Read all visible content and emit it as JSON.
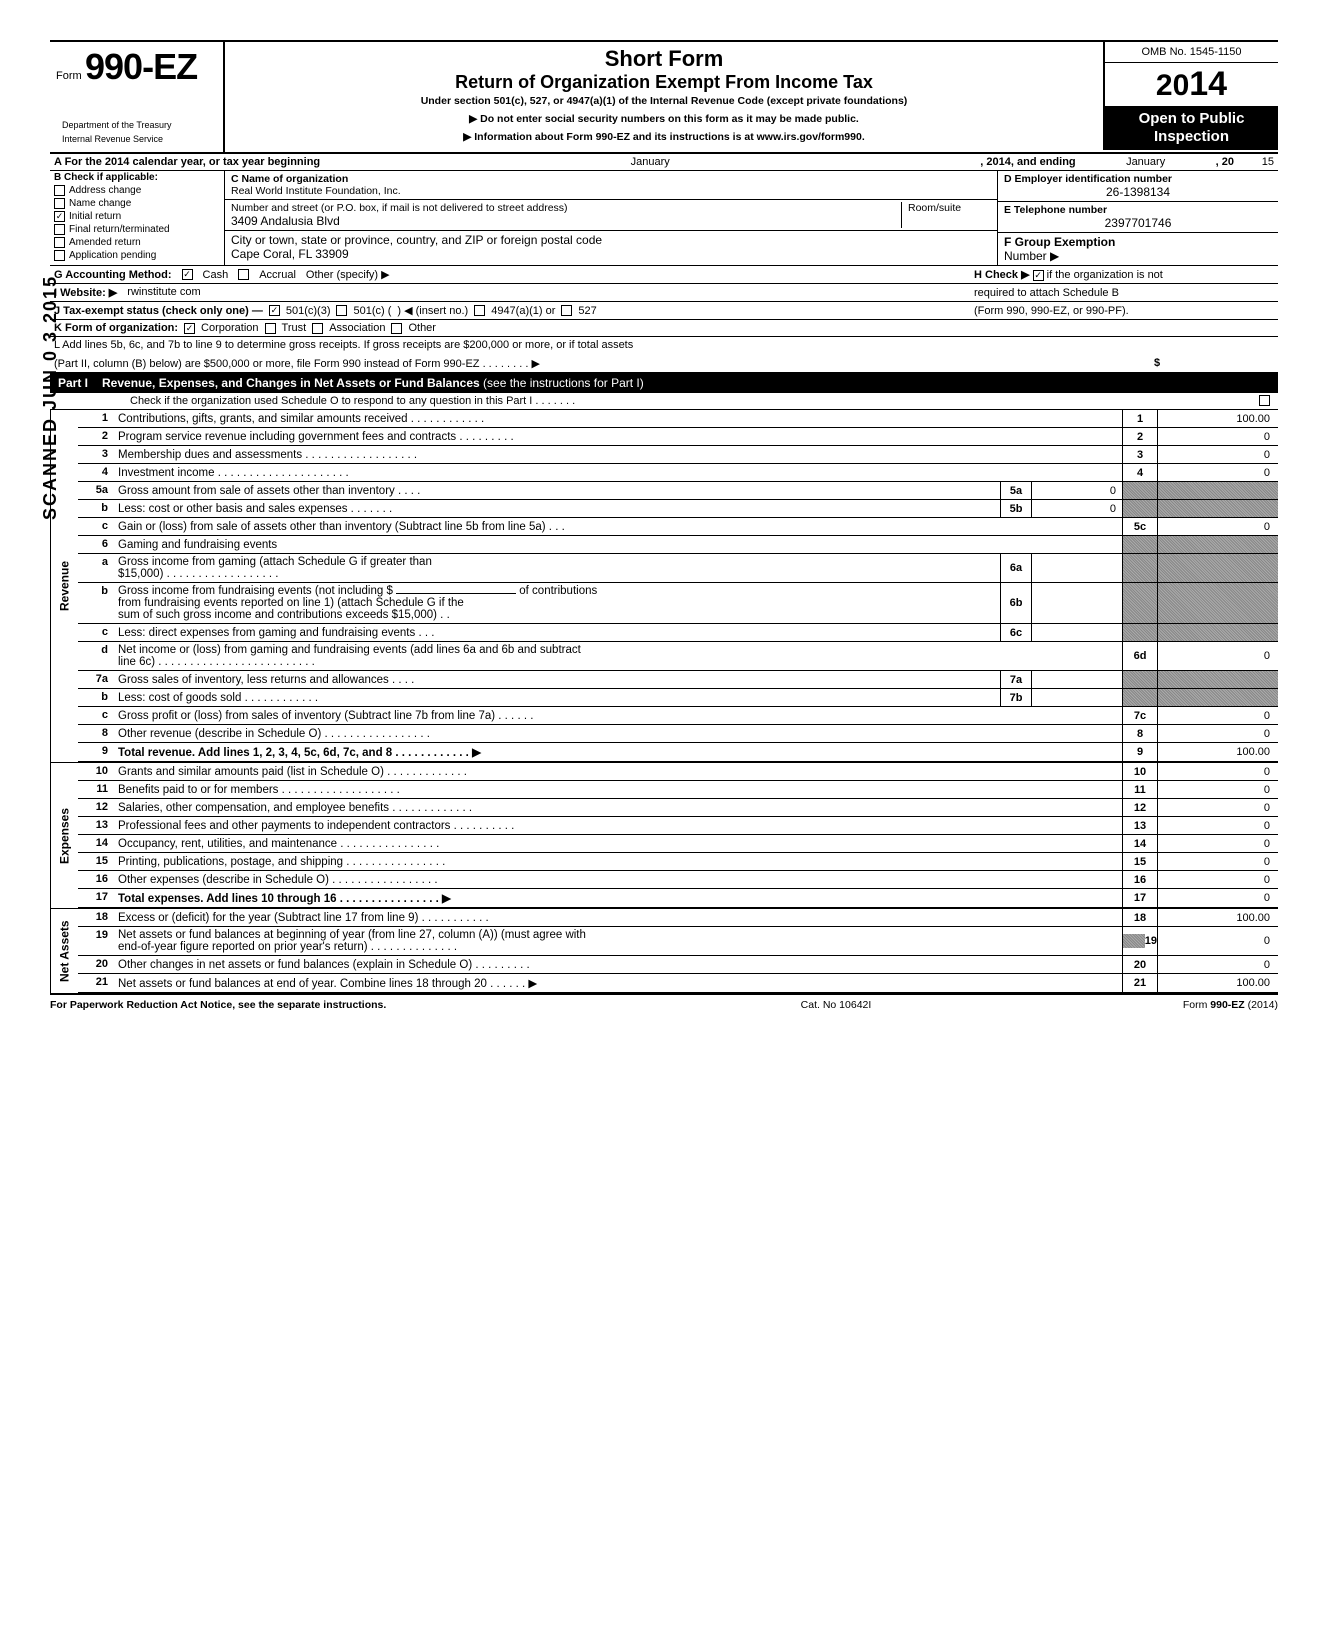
{
  "header": {
    "form_prefix": "Form",
    "form_no": "990-EZ",
    "dept1": "Department of the Treasury",
    "dept2": "Internal Revenue Service",
    "title": "Short Form",
    "subtitle": "Return of Organization Exempt From Income Tax",
    "under": "Under section 501(c), 527, or 4947(a)(1) of the Internal Revenue Code (except private foundations)",
    "ssn_note": "▶ Do not enter social security numbers on this form as it may be made public.",
    "info_note": "▶ Information about Form 990-EZ and its instructions is at www.irs.gov/form990.",
    "omb": "OMB No. 1545-1150",
    "year_prefix": "20",
    "year_bold": "14",
    "open1": "Open to Public",
    "open2": "Inspection"
  },
  "line_a": {
    "text_l": "A  For the 2014 calendar year, or tax year beginning",
    "month1": "January",
    "mid": ", 2014, and ending",
    "month2": "January",
    "end": ", 20",
    "end_yr": "15"
  },
  "col_b": {
    "header": "B  Check if applicable:",
    "items": [
      {
        "label": "Address change",
        "checked": false
      },
      {
        "label": "Name change",
        "checked": false
      },
      {
        "label": "Initial return",
        "checked": true
      },
      {
        "label": "Final return/terminated",
        "checked": false
      },
      {
        "label": "Amended return",
        "checked": false
      },
      {
        "label": "Application pending",
        "checked": false
      }
    ]
  },
  "col_c": {
    "name_label": "C  Name of organization",
    "name_value": "Real World Institute Foundation, Inc.",
    "street_label": "Number and street (or P.O. box, if mail is not delivered to street address)",
    "room_label": "Room/suite",
    "street_value": "3409 Andalusia Blvd",
    "city_label": "City or town, state or province, country, and ZIP or foreign postal code",
    "city_value": "Cape Coral, FL 33909"
  },
  "col_d": {
    "ein_label": "D Employer identification number",
    "ein_value": "26-1398134",
    "phone_label": "E  Telephone number",
    "phone_value": "2397701746",
    "group_label": "F  Group Exemption",
    "group_label2": "Number ▶"
  },
  "line_g": {
    "label": "G  Accounting Method:",
    "cash": "Cash",
    "cash_checked": true,
    "accrual": "Accrual",
    "accrual_checked": false,
    "other": "Other (specify) ▶"
  },
  "line_h": {
    "text1": "H  Check ▶",
    "checked": true,
    "text2": "if the organization is not",
    "text3": "required to attach Schedule B",
    "text4": "(Form 990, 990-EZ, or 990-PF)."
  },
  "line_i": {
    "label": "I   Website: ▶",
    "value": "rwinstitute com"
  },
  "line_j": {
    "label": "J  Tax-exempt status (check only one) —",
    "o1": "501(c)(3)",
    "o1_checked": true,
    "o2": "501(c) (",
    "o2_checked": false,
    "insert": ") ◀ (insert no.)",
    "o3": "4947(a)(1) or",
    "o3_checked": false,
    "o4": "527",
    "o4_checked": false
  },
  "line_k": {
    "label": "K  Form of organization:",
    "corp": "Corporation",
    "corp_checked": true,
    "trust": "Trust",
    "trust_checked": false,
    "assoc": "Association",
    "assoc_checked": false,
    "other": "Other",
    "other_checked": false
  },
  "line_l": {
    "text": "L  Add lines 5b, 6c, and 7b to line 9 to determine gross receipts. If gross receipts are $200,000 or more, or if total assets",
    "text2": "(Part II, column (B) below) are $500,000 or more, file Form 990 instead of Form 990-EZ .    .    .    .    .    .    .    .   ▶",
    "amount_label": "$"
  },
  "part1": {
    "no": "Part I",
    "title_b": "Revenue, Expenses, and Changes in Net Assets or Fund Balances",
    "title_r": " (see the instructions for Part I)",
    "check_o": "Check if the organization used Schedule O to respond to any question in this Part I .    .    .    .    .    .    ."
  },
  "rotated": {
    "revenue": "Revenue",
    "expenses": "Expenses",
    "netassets": "Net Assets"
  },
  "revenue_lines": [
    {
      "n": "1",
      "desc": "Contributions, gifts, grants, and similar amounts received .    .    .    .    .    .    .    .    .    .    .    .",
      "rn": "1",
      "rv": "100.00"
    },
    {
      "n": "2",
      "desc": "Program service revenue including government fees and contracts    .    .    .    .    .    .    .    .    .",
      "rn": "2",
      "rv": "0"
    },
    {
      "n": "3",
      "desc": "Membership dues and assessments .    .    .    .    .    .    .    .    .    .    .    .    .    .    .    .    .    .",
      "rn": "3",
      "rv": "0"
    },
    {
      "n": "4",
      "desc": "Investment income      .    .    .    .    .    .    .    .    .    .    .    .    .    .    .    .    .    .    .    .    .",
      "rn": "4",
      "rv": "0"
    }
  ],
  "line5a": {
    "n": "5a",
    "desc": "Gross amount from sale of assets other than inventory    .    .    .    .",
    "mn": "5a",
    "mv": "0"
  },
  "line5b": {
    "n": "b",
    "desc": "Less: cost or other basis and sales expenses .    .    .    .    .    .    .",
    "mn": "5b",
    "mv": "0"
  },
  "line5c": {
    "n": "c",
    "desc": "Gain or (loss) from sale of assets other than inventory (Subtract line 5b from line 5a) .    .    .",
    "rn": "5c",
    "rv": "0"
  },
  "line6": {
    "n": "6",
    "desc": "Gaming and fundraising events"
  },
  "line6a": {
    "n": "a",
    "desc1": "Gross income from gaming (attach Schedule G if greater than",
    "desc2": "$15,000) .    .    .    .    .    .    .    .    .    .    .    .    .    .    .    .    .    .",
    "mn": "6a",
    "mv": ""
  },
  "line6b": {
    "n": "b",
    "desc1": "Gross income from fundraising events (not including  $",
    "desc_mid": "of contributions",
    "desc2": "from fundraising events reported on line 1) (attach Schedule G if the",
    "desc3": "sum of such gross income and contributions exceeds $15,000) .    .",
    "mn": "6b",
    "mv": ""
  },
  "line6c": {
    "n": "c",
    "desc": "Less: direct expenses from gaming and fundraising events    .    .    .",
    "mn": "6c",
    "mv": ""
  },
  "line6d": {
    "n": "d",
    "desc1": "Net income or (loss) from gaming and fundraising events (add lines 6a and 6b and subtract",
    "desc2": "line 6c)     .    .    .    .    .    .    .    .    .    .    .    .    .    .    .    .    .    .    .    .    .    .    .    .    .",
    "rn": "6d",
    "rv": "0"
  },
  "line7a": {
    "n": "7a",
    "desc": "Gross sales of inventory, less returns and allowances    .    .    .    .",
    "mn": "7a",
    "mv": ""
  },
  "line7b": {
    "n": "b",
    "desc": "Less: cost of goods sold       .    .    .    .    .    .    .    .    .    .    .    .",
    "mn": "7b",
    "mv": ""
  },
  "line7c": {
    "n": "c",
    "desc": "Gross profit or (loss) from sales of inventory (Subtract line 7b from line 7a)    .    .    .    .    .    .",
    "rn": "7c",
    "rv": "0"
  },
  "line8": {
    "n": "8",
    "desc": "Other revenue (describe in Schedule O) .    .    .    .    .    .    .    .    .    .    .    .    .    .    .    .    .",
    "rn": "8",
    "rv": "0"
  },
  "line9": {
    "n": "9",
    "desc": "Total revenue. Add lines 1, 2, 3, 4, 5c, 6d, 7c, and 8    .    .    .    .    .    .    .    .    .    .    .    .   ▶",
    "rn": "9",
    "rv": "100.00",
    "bold": true
  },
  "expense_lines": [
    {
      "n": "10",
      "desc": "Grants and similar amounts paid (list in Schedule O)    .    .    .    .    .    .    .    .    .    .    .    .    .",
      "rn": "10",
      "rv": "0"
    },
    {
      "n": "11",
      "desc": "Benefits paid to or for members    .    .    .    .    .    .    .    .    .    .    .    .    .    .    .    .    .    .    .",
      "rn": "11",
      "rv": "0"
    },
    {
      "n": "12",
      "desc": "Salaries, other compensation, and employee benefits    .    .    .    .    .    .    .    .    .    .    .    .    .",
      "rn": "12",
      "rv": "0"
    },
    {
      "n": "13",
      "desc": "Professional fees and other payments to independent contractors .    .    .    .    .    .    .    .    .    .",
      "rn": "13",
      "rv": "0"
    },
    {
      "n": "14",
      "desc": "Occupancy, rent, utilities, and maintenance    .    .    .    .    .    .    .    .    .    .    .    .    .    .    .    .",
      "rn": "14",
      "rv": "0"
    },
    {
      "n": "15",
      "desc": "Printing, publications, postage, and shipping .    .    .    .    .    .    .    .    .    .    .    .    .    .    .    .",
      "rn": "15",
      "rv": "0"
    },
    {
      "n": "16",
      "desc": "Other expenses (describe in Schedule O)  .    .    .    .    .    .    .    .    .    .    .    .    .    .    .    .    .",
      "rn": "16",
      "rv": "0"
    },
    {
      "n": "17",
      "desc": "Total expenses. Add lines 10 through 16   .    .    .    .    .    .    .    .    .    .    .    .    .    .    .    .   ▶",
      "rn": "17",
      "rv": "0",
      "bold": true
    }
  ],
  "netasset_lines": [
    {
      "n": "18",
      "desc": "Excess or (deficit) for the year (Subtract line 17 from line 9)    .    .    .    .    .    .    .    .    .    .    .",
      "rn": "18",
      "rv": "100.00"
    },
    {
      "n": "19",
      "desc1": "Net assets or fund balances at beginning of year (from line 27, column (A)) (must agree with",
      "desc2": "end-of-year figure reported on prior year's return)    .    .    .    .    .    .    .    .    .    .    .    .    .    .",
      "rn": "19",
      "rv": "0",
      "shade_first": true
    },
    {
      "n": "20",
      "desc": "Other changes in net assets or fund balances (explain in Schedule O) .    .    .    .    .    .    .    .    .",
      "rn": "20",
      "rv": "0"
    },
    {
      "n": "21",
      "desc": "Net assets or fund balances at end of year. Combine lines 18 through 20    .    .    .    .    .    .   ▶",
      "rn": "21",
      "rv": "100.00"
    }
  ],
  "footer": {
    "left": "For Paperwork Reduction Act Notice, see the separate instructions.",
    "center": "Cat. No  10642I",
    "right": "Form 990-EZ  (2014)"
  },
  "stamps": {
    "scanned": "SCANNED  JUN  0 3  2015"
  }
}
